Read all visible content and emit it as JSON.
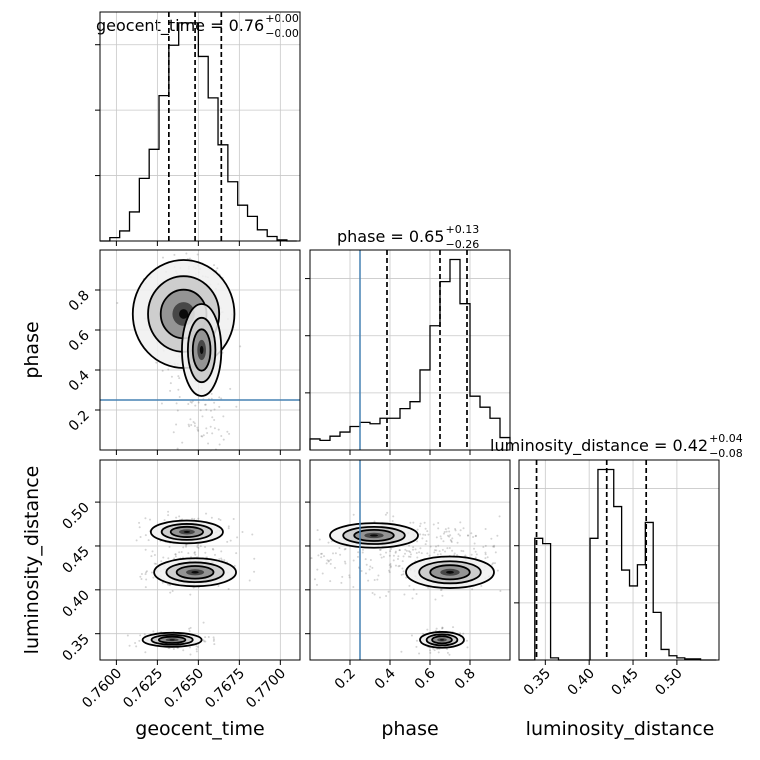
{
  "chart_data": {
    "type": "corner",
    "parameters": [
      "geocent_time",
      "phase",
      "luminosity_distance"
    ],
    "truths": {
      "phase": 0.25
    },
    "titles": [
      {
        "param": "geocent_time",
        "label": "geocent_time = 0.76",
        "plus": "+0.00",
        "minus": "−0.00"
      },
      {
        "param": "phase",
        "label": "phase = 0.65",
        "plus": "+0.13",
        "minus": "−0.26"
      },
      {
        "param": "luminosity_distance",
        "label": "luminosity_distance = 0.42",
        "plus": "+0.04",
        "minus": "−0.08"
      }
    ],
    "axes": {
      "geocent_time": {
        "range": [
          0.759,
          0.7712
        ],
        "ticks": [
          "0.7600",
          "0.7625",
          "0.7650",
          "0.7675",
          "0.7700"
        ],
        "tick_values": [
          0.76,
          0.7625,
          0.765,
          0.7675,
          0.77
        ]
      },
      "phase": {
        "range": [
          0.0,
          1.0
        ],
        "ticks": [
          "0.2",
          "0.4",
          "0.6",
          "0.8"
        ],
        "tick_values": [
          0.2,
          0.4,
          0.6,
          0.8
        ]
      },
      "luminosity_distance": {
        "range": [
          0.32,
          0.548
        ],
        "ticks": [
          "0.35",
          "0.40",
          "0.45",
          "0.50"
        ],
        "tick_values": [
          0.35,
          0.4,
          0.45,
          0.5
        ]
      }
    },
    "histograms": {
      "geocent_time": {
        "bin_edges": [
          0.759,
          0.7596,
          0.7602,
          0.7608,
          0.7614,
          0.762,
          0.7626,
          0.7632,
          0.7638,
          0.7644,
          0.765,
          0.7656,
          0.7662,
          0.7668,
          0.7674,
          0.768,
          0.7686,
          0.7692,
          0.7698,
          0.7704,
          0.771
        ],
        "counts": [
          0,
          3,
          9,
          26,
          56,
          82,
          130,
          175,
          195,
          195,
          165,
          128,
          86,
          53,
          32,
          22,
          10,
          4,
          1,
          0
        ],
        "quantiles": [
          0.7632,
          0.7648,
          0.7664
        ]
      },
      "phase": {
        "bin_edges": [
          0.0,
          0.05,
          0.1,
          0.15,
          0.2,
          0.25,
          0.3,
          0.35,
          0.4,
          0.45,
          0.5,
          0.55,
          0.6,
          0.65,
          0.7,
          0.75,
          0.8,
          0.85,
          0.9,
          0.95,
          1.0
        ],
        "counts": [
          8,
          7,
          10,
          13,
          17,
          20,
          19,
          23,
          23,
          30,
          35,
          58,
          90,
          122,
          138,
          106,
          39,
          31,
          23,
          9
        ],
        "quantiles": [
          0.385,
          0.65,
          0.785
        ]
      },
      "luminosity_distance": {
        "bin_edges": [
          0.32,
          0.329,
          0.338,
          0.347,
          0.356,
          0.365,
          0.374,
          0.383,
          0.392,
          0.401,
          0.41,
          0.419,
          0.428,
          0.437,
          0.446,
          0.455,
          0.464,
          0.473,
          0.482,
          0.491,
          0.5,
          0.509,
          0.518,
          0.527,
          0.536,
          0.545
        ],
        "counts": [
          0,
          0,
          115,
          110,
          2,
          0,
          0,
          0,
          0,
          115,
          180,
          180,
          145,
          85,
          70,
          90,
          130,
          45,
          10,
          4,
          2,
          1,
          1,
          0,
          0
        ],
        "quantiles": [
          0.34,
          0.42,
          0.465
        ]
      }
    },
    "scatter_points": 900,
    "tick_rotation_deg": 45,
    "show_grid": true
  }
}
